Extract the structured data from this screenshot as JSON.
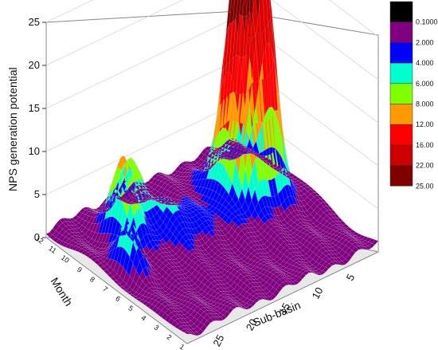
{
  "chart_data": {
    "type": "surface3d",
    "title": "",
    "zlabel": "NPS generation potential",
    "xlabel": "Sub-basin",
    "ylabel": "Month",
    "zlim": [
      0,
      25
    ],
    "z_ticks": [
      "0",
      "5",
      "10",
      "15",
      "20",
      "25"
    ],
    "subbasin_ticks": [
      "5",
      "10",
      "15",
      "20",
      "25",
      "30"
    ],
    "subbasin_range": [
      1,
      30
    ],
    "month_ticks": [
      "1",
      "2",
      "3",
      "4",
      "5",
      "6",
      "7",
      "8",
      "9",
      "10",
      "11",
      "12"
    ],
    "legend": {
      "placement": "right",
      "levels": [
        {
          "label": "0.1000",
          "color": "#000000"
        },
        {
          "label": "2.000",
          "color": "#800080"
        },
        {
          "label": "4.000",
          "color": "#0000ff"
        },
        {
          "label": "6.000",
          "color": "#00ffcc"
        },
        {
          "label": "8.000",
          "color": "#80ff00"
        },
        {
          "label": "12.00",
          "color": "#ff9900"
        },
        {
          "label": "16.00",
          "color": "#ff0000"
        },
        {
          "label": "22.00",
          "color": "#cc0000"
        },
        {
          "label": "25.00",
          "color": "#800000"
        }
      ]
    },
    "peaks": [
      {
        "subbasin": 5,
        "month": 8,
        "z": 24.5
      },
      {
        "subbasin": 7,
        "month": 8,
        "z": 20.5
      },
      {
        "subbasin": 9,
        "month": 8,
        "z": 22.0
      },
      {
        "subbasin": 24,
        "month": 9,
        "z": 10.0
      },
      {
        "subbasin": 27,
        "month": 7,
        "z": 5.0
      },
      {
        "subbasin": 21,
        "month": 10,
        "z": 6.0
      }
    ]
  }
}
